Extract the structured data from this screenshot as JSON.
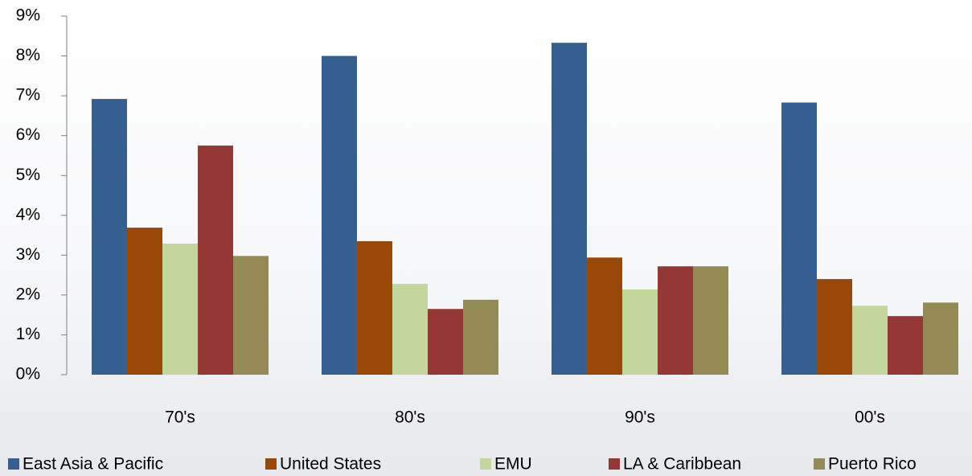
{
  "chart_data": {
    "type": "bar",
    "categories": [
      "70's",
      "80's",
      "90's",
      "00's"
    ],
    "series": [
      {
        "name": "East Asia & Pacific",
        "color": "#365f91",
        "values": [
          6.92,
          8.0,
          8.33,
          6.83
        ]
      },
      {
        "name": "United States",
        "color": "#984807",
        "values": [
          3.69,
          3.35,
          2.94,
          2.4
        ]
      },
      {
        "name": "EMU",
        "color": "#c3d69b",
        "values": [
          3.29,
          2.28,
          2.14,
          1.73
        ]
      },
      {
        "name": "LA & Caribbean",
        "color": "#953735",
        "values": [
          5.75,
          1.65,
          2.72,
          1.47
        ]
      },
      {
        "name": "Puerto Rico",
        "color": "#948a54",
        "values": [
          2.98,
          1.88,
          2.72,
          1.81
        ]
      }
    ],
    "ylim": [
      0,
      9
    ],
    "yticks": [
      {
        "value": 0,
        "label": "0%"
      },
      {
        "value": 1,
        "label": "1%"
      },
      {
        "value": 2,
        "label": "2%"
      },
      {
        "value": 3,
        "label": "3%"
      },
      {
        "value": 4,
        "label": "4%"
      },
      {
        "value": 5,
        "label": "5%"
      },
      {
        "value": 6,
        "label": "6%"
      },
      {
        "value": 7,
        "label": "7%"
      },
      {
        "value": 8,
        "label": "8%"
      },
      {
        "value": 9,
        "label": "9%"
      }
    ],
    "grid": false,
    "legend": "bottom"
  }
}
